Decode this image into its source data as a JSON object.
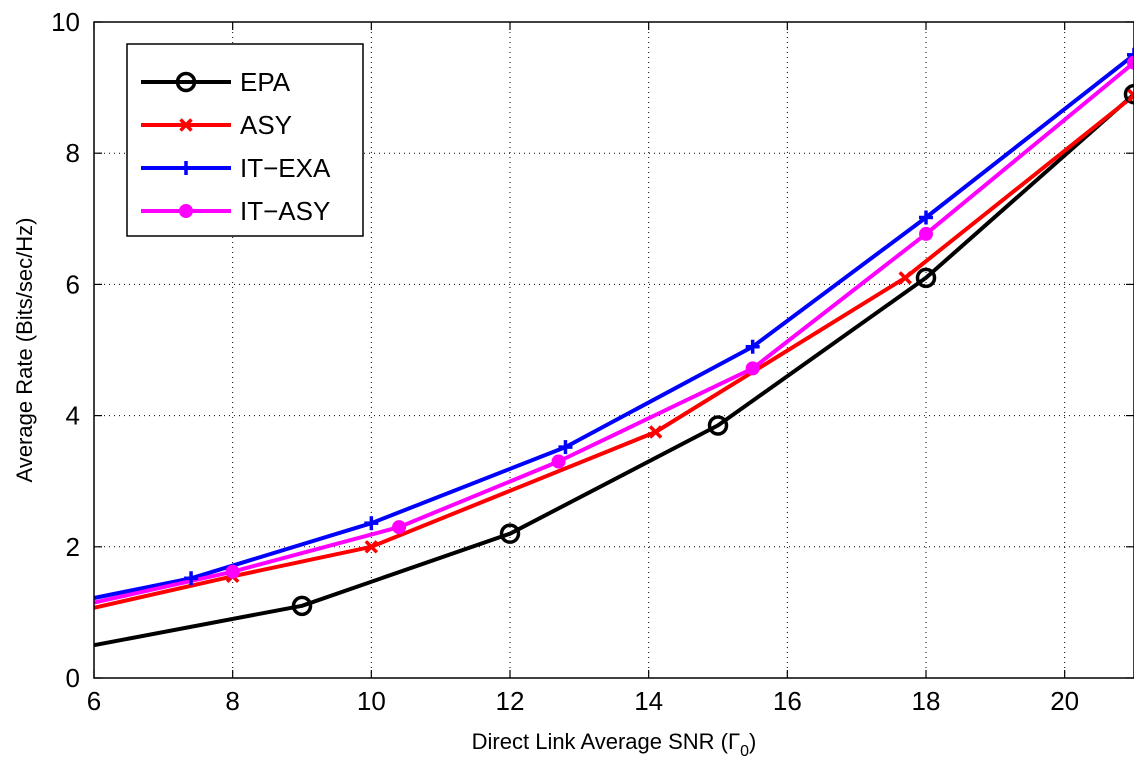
{
  "chart_data": {
    "type": "line",
    "title": "",
    "xlabel": "Direct Link Average SNR (Γ",
    "xlabel_sub": "0",
    "xlabel_close": ")",
    "ylabel": "Average Rate (Bits/sec/Hz)",
    "xlim": [
      6,
      21
    ],
    "ylim": [
      0,
      10
    ],
    "xticks": [
      6,
      8,
      10,
      12,
      14,
      16,
      18,
      20
    ],
    "yticks": [
      0,
      2,
      4,
      6,
      8,
      10
    ],
    "grid": true,
    "legend_position": "top-left",
    "series": [
      {
        "name": "EPA",
        "color": "#000000",
        "marker": "circle",
        "x": [
          6,
          9,
          12,
          15,
          18,
          21
        ],
        "y": [
          0.5,
          1.1,
          2.2,
          3.85,
          6.1,
          8.9
        ],
        "marker_x": [
          9,
          12,
          15,
          18,
          21
        ],
        "marker_y": [
          1.1,
          2.2,
          3.85,
          6.1,
          8.9
        ]
      },
      {
        "name": "ASY",
        "color": "#ff0000",
        "marker": "x",
        "x": [
          6,
          8,
          10,
          14.1,
          17.7,
          21
        ],
        "y": [
          1.07,
          1.55,
          2.0,
          3.75,
          6.1,
          8.88
        ],
        "marker_x": [
          8,
          10,
          14.1,
          17.7,
          21
        ],
        "marker_y": [
          1.55,
          2.0,
          3.75,
          6.1,
          8.88
        ]
      },
      {
        "name": "IT−EXA",
        "color": "#0000ff",
        "marker": "plus",
        "x": [
          6,
          7.4,
          10,
          12.8,
          15.5,
          18,
          21
        ],
        "y": [
          1.22,
          1.52,
          2.36,
          3.52,
          5.05,
          7.02,
          9.5
        ],
        "marker_x": [
          7.4,
          10,
          12.8,
          15.5,
          18,
          21
        ],
        "marker_y": [
          1.52,
          2.36,
          3.52,
          5.05,
          7.02,
          9.5
        ]
      },
      {
        "name": "IT−ASY",
        "color": "#ff00ff",
        "marker": "dot",
        "x": [
          6,
          8,
          10.4,
          12.7,
          15.5,
          18,
          21
        ],
        "y": [
          1.15,
          1.62,
          2.3,
          3.3,
          4.72,
          6.77,
          9.38
        ],
        "marker_x": [
          8,
          10.4,
          12.7,
          15.5,
          18,
          21
        ],
        "marker_y": [
          1.62,
          2.3,
          3.3,
          4.72,
          6.77,
          9.38
        ]
      }
    ]
  }
}
